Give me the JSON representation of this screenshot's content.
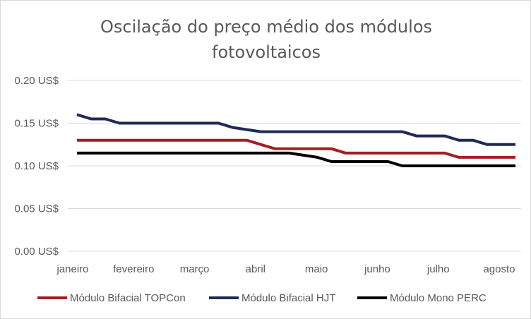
{
  "chart_data": {
    "type": "line",
    "title_lines": [
      "Oscilação do preço médio dos módulos",
      "fotovoltaicos"
    ],
    "ylim": [
      0,
      0.2
    ],
    "y_ticks": [
      0.0,
      0.05,
      0.1,
      0.15,
      0.2
    ],
    "y_tick_labels": [
      "0.00 US$",
      "0.05 US$",
      "0.10 US$",
      "0.15 US$",
      "0.20 US$"
    ],
    "x_labels": [
      "janeiro",
      "fevereiro",
      "março",
      "abril",
      "maio",
      "junho",
      "julho",
      "agosto"
    ],
    "x_points": 32,
    "grid": true,
    "legend_position": "bottom",
    "series": [
      {
        "name": "Módulo Bifacial TOPCon",
        "color": "#a51e22",
        "values": [
          0.13,
          0.13,
          0.13,
          0.13,
          0.13,
          0.13,
          0.13,
          0.13,
          0.13,
          0.13,
          0.13,
          0.13,
          0.13,
          0.125,
          0.12,
          0.12,
          0.12,
          0.12,
          0.12,
          0.115,
          0.115,
          0.115,
          0.115,
          0.115,
          0.115,
          0.115,
          0.115,
          0.11,
          0.11,
          0.11,
          0.11,
          0.11
        ]
      },
      {
        "name": "Módulo Bifacial HJT",
        "color": "#1f2a56",
        "values": [
          0.16,
          0.155,
          0.155,
          0.15,
          0.15,
          0.15,
          0.15,
          0.15,
          0.15,
          0.15,
          0.15,
          0.145,
          0.1425,
          0.14,
          0.14,
          0.14,
          0.14,
          0.14,
          0.14,
          0.14,
          0.14,
          0.14,
          0.14,
          0.14,
          0.135,
          0.135,
          0.135,
          0.13,
          0.13,
          0.125,
          0.125,
          0.125
        ]
      },
      {
        "name": "Módulo Mono PERC",
        "color": "#000000",
        "values": [
          0.115,
          0.115,
          0.115,
          0.115,
          0.115,
          0.115,
          0.115,
          0.115,
          0.115,
          0.115,
          0.115,
          0.115,
          0.115,
          0.115,
          0.115,
          0.115,
          0.1125,
          0.11,
          0.105,
          0.105,
          0.105,
          0.105,
          0.105,
          0.1,
          0.1,
          0.1,
          0.1,
          0.1,
          0.1,
          0.1,
          0.1,
          0.1
        ]
      }
    ]
  }
}
